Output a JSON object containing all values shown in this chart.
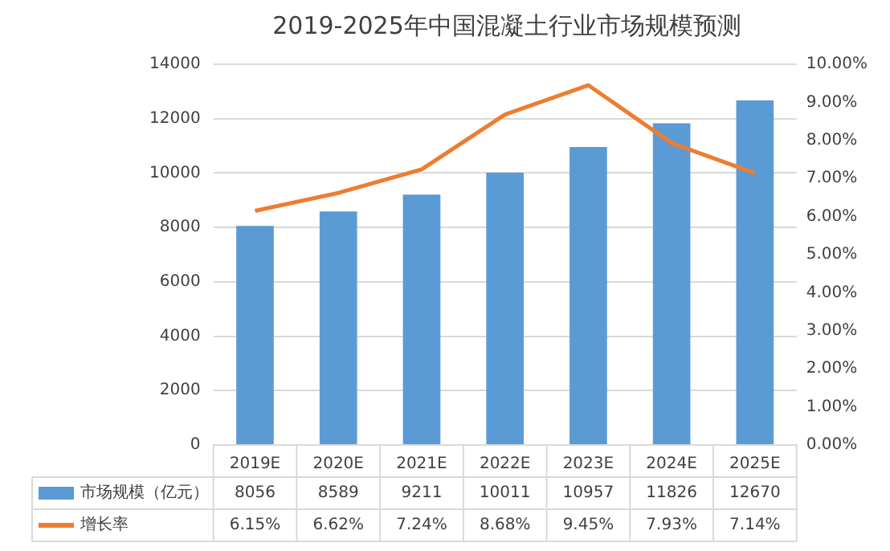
{
  "chart_data": {
    "type": "bar",
    "title": "2019-2025年中国混凝土行业市场规模预测",
    "categories": [
      "2019E",
      "2020E",
      "2021E",
      "2022E",
      "2023E",
      "2024E",
      "2025E"
    ],
    "series": [
      {
        "name": "市场规模（亿元）",
        "color": "#5b9bd5",
        "values": [
          8056,
          8589,
          9211,
          10011,
          10957,
          11826,
          12670
        ],
        "value_labels": [
          "8056",
          "8589",
          "9211",
          "10011",
          "10957",
          "11826",
          "12670"
        ]
      },
      {
        "name": "增长率",
        "type": "line",
        "axis": "y2",
        "color": "#ed7d31",
        "values": [
          6.15,
          6.62,
          7.24,
          8.68,
          9.45,
          7.93,
          7.14
        ],
        "value_labels": [
          "6.15%",
          "6.62%",
          "7.24%",
          "8.68%",
          "9.45%",
          "7.93%",
          "7.14%"
        ]
      }
    ],
    "ylim": [
      0,
      14000
    ],
    "yticks": [
      0,
      2000,
      4000,
      6000,
      8000,
      10000,
      12000,
      14000
    ],
    "y2lim": [
      0,
      10
    ],
    "y2ticks": [
      {
        "value": 0,
        "label": "0.00%"
      },
      {
        "value": 1,
        "label": "1.00%"
      },
      {
        "value": 2,
        "label": "2.00%"
      },
      {
        "value": 3,
        "label": "3.00%"
      },
      {
        "value": 4,
        "label": "4.00%"
      },
      {
        "value": 5,
        "label": "5.00%"
      },
      {
        "value": 6,
        "label": "6.00%"
      },
      {
        "value": 7,
        "label": "7.00%"
      },
      {
        "value": 8,
        "label": "8.00%"
      },
      {
        "value": 9,
        "label": "9.00%"
      },
      {
        "value": 10,
        "label": "10.00%"
      }
    ],
    "grid": "y",
    "legend": "bottom",
    "marker": "none",
    "line_style": "solid"
  }
}
